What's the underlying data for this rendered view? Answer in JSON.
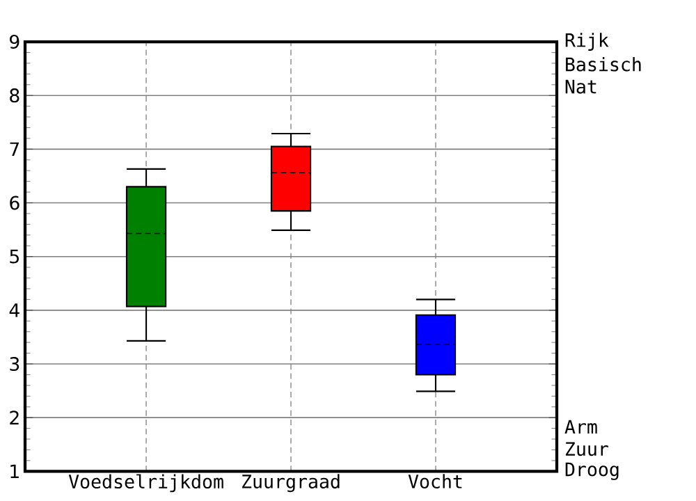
{
  "chart_data": {
    "type": "box",
    "categories": [
      "Voedselrijkdom",
      "Zuurgraad",
      "Vocht"
    ],
    "boxes": [
      {
        "low": 3.43,
        "q1": 4.07,
        "median": 5.43,
        "q3": 6.3,
        "high": 6.63
      },
      {
        "low": 5.49,
        "q1": 5.85,
        "median": 6.56,
        "q3": 7.05,
        "high": 7.29
      },
      {
        "low": 2.49,
        "q1": 2.8,
        "median": 3.36,
        "q3": 3.91,
        "high": 4.2
      }
    ],
    "colors": [
      "#008000",
      "#ff0000",
      "#0000ff"
    ],
    "ylim": [
      1,
      9
    ],
    "yticks": [
      1,
      2,
      3,
      4,
      5,
      6,
      7,
      8,
      9
    ],
    "grid": true,
    "annotations": [
      "Rijk",
      "Basisch",
      "Nat",
      "Arm",
      "Zuur",
      "Droog"
    ]
  }
}
